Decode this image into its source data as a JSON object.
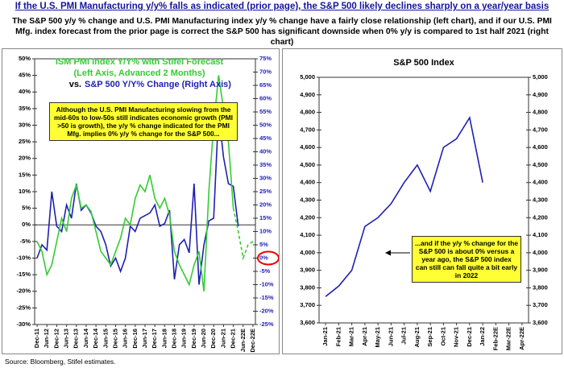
{
  "header": {
    "title": "If the U.S. PMI Manufacturing y/y% falls as indicated (prior page), the S&P 500 likely declines sharply on a year/year basis",
    "subtitle": "The S&P 500 y/y % change and U.S. PMI Manufacturing index y/y % change have a fairly close relationship (left chart), and if our U.S. PMI Mfg. index forecast from the prior page is correct the S&P 500 has significant downside when 0% y/y is compared to 1st half 2021 (right chart)"
  },
  "footnote": "Source: Bloomberg, Stifel estimates.",
  "chart_data": [
    {
      "type": "line",
      "title": "ISM PMI Index Y/Y% with Stifel Forecast",
      "subtitle": "(Left Axis, Advanced 2 Months)",
      "title2_prefix": "vs.",
      "title2": "S&P 500 Y/Y% Change (Right Axis)",
      "annotation": "Although the U.S. PMI Manufacturing slowing from the mid-60s to low-50s still indicates economic growth (PMI >50 is growth), the y/y % change indicated for the PMI Mfg. implies 0% y/y % change for the S&P 500...",
      "x": [
        "Dec-11",
        "Mar-12",
        "Jun-12",
        "Sep-12",
        "Dec-12",
        "Mar-13",
        "Jun-13",
        "Sep-13",
        "Dec-13",
        "Mar-14",
        "Jun-14",
        "Sep-14",
        "Dec-14",
        "Mar-15",
        "Jun-15",
        "Sep-15",
        "Dec-15",
        "Mar-16",
        "Jun-16",
        "Sep-16",
        "Dec-16",
        "Mar-17",
        "Jun-17",
        "Sep-17",
        "Dec-17",
        "Mar-18",
        "Jun-18",
        "Sep-18",
        "Dec-18",
        "Mar-19",
        "Jun-19",
        "Sep-19",
        "Dec-19",
        "Mar-20",
        "Jun-20",
        "Sep-20",
        "Dec-20",
        "Mar-21",
        "Jun-21",
        "Sep-21",
        "Dec-21",
        "Mar-22E",
        "Jun-22E",
        "Sep-22E",
        "Dec-22E"
      ],
      "xticks": [
        "Dec-11",
        "Jun-12",
        "Dec-12",
        "Jun-13",
        "Dec-13",
        "Jun-14",
        "Dec-14",
        "Jun-15",
        "Dec-15",
        "Jun-16",
        "Dec-16",
        "Jun-17",
        "Dec-17",
        "Jun-18",
        "Dec-18",
        "Jun-19",
        "Dec-19",
        "Jun-20",
        "Dec-20",
        "Jun-21",
        "Dec-21",
        "Jun-22E",
        "Dec-22E"
      ],
      "series": [
        {
          "color": "#33cc33",
          "axis": "y",
          "dashed_after": "Dec-21",
          "values": [
            -5,
            -8,
            -15,
            -12,
            -5,
            2,
            -2,
            8,
            12,
            5,
            6,
            4,
            -2,
            -8,
            -10,
            -12,
            -8,
            -4,
            2,
            0,
            8,
            12,
            10,
            15,
            8,
            5,
            8,
            3,
            -8,
            -12,
            -15,
            -18,
            -12,
            -8,
            -20,
            10,
            30,
            45,
            35,
            25,
            5,
            -2,
            -10,
            -6,
            -5
          ]
        },
        {
          "color": "#1f1fb4",
          "axis": "y2",
          "values": [
            0,
            5,
            3,
            25,
            12,
            10,
            20,
            15,
            28,
            18,
            20,
            17,
            12,
            10,
            5,
            -3,
            0,
            -5,
            0,
            12,
            10,
            15,
            16,
            17,
            20,
            12,
            13,
            18,
            -8,
            5,
            7,
            2,
            28,
            -10,
            5,
            14,
            15,
            55,
            38,
            28,
            27,
            12,
            null,
            null,
            null
          ]
        }
      ],
      "ylim": [
        -30,
        50
      ],
      "yticks": [
        {
          "value": -30,
          "label": "-30%"
        },
        {
          "value": -25,
          "label": "-25%"
        },
        {
          "value": -20,
          "label": "-20%"
        },
        {
          "value": -15,
          "label": "-15%"
        },
        {
          "value": -10,
          "label": "-10%"
        },
        {
          "value": -5,
          "label": "-5%"
        },
        {
          "value": 0,
          "label": "0%"
        },
        {
          "value": 5,
          "label": "5%"
        },
        {
          "value": 10,
          "label": "10%"
        },
        {
          "value": 15,
          "label": "15%"
        },
        {
          "value": 20,
          "label": "20%"
        },
        {
          "value": 25,
          "label": "25%"
        },
        {
          "value": 30,
          "label": "30%"
        },
        {
          "value": 35,
          "label": "35%"
        },
        {
          "value": 40,
          "label": "40%"
        },
        {
          "value": 45,
          "label": "45%"
        },
        {
          "value": 50,
          "label": "50%"
        }
      ],
      "y2lim": [
        -25,
        75
      ],
      "y2ticks": [
        {
          "value": -25,
          "label": "-25%"
        },
        {
          "value": -20,
          "label": "-20%"
        },
        {
          "value": -15,
          "label": "-15%"
        },
        {
          "value": -10,
          "label": "-10%"
        },
        {
          "value": -5,
          "label": "-5%"
        },
        {
          "value": 0,
          "label": "0%"
        },
        {
          "value": 5,
          "label": "5%"
        },
        {
          "value": 10,
          "label": "10%"
        },
        {
          "value": 15,
          "label": "15%"
        },
        {
          "value": 20,
          "label": "20%"
        },
        {
          "value": 25,
          "label": "25%"
        },
        {
          "value": 30,
          "label": "30%"
        },
        {
          "value": 35,
          "label": "35%"
        },
        {
          "value": 40,
          "label": "40%"
        },
        {
          "value": 45,
          "label": "45%"
        },
        {
          "value": 50,
          "label": "50%"
        },
        {
          "value": 55,
          "label": "55%"
        },
        {
          "value": 60,
          "label": "60%"
        },
        {
          "value": 65,
          "label": "65%"
        },
        {
          "value": 70,
          "label": "70%"
        },
        {
          "value": 75,
          "label": "75%"
        }
      ],
      "zero_line": true,
      "grid": false
    },
    {
      "type": "line",
      "title": "S&P 500 Index",
      "annotation": "...and if the y/y % change for the S&P 500 is about 0% versus a year ago, the S&P 500 index can still can fall quite a bit early in 2022",
      "x": [
        "Jan-21",
        "Feb-21",
        "Mar-21",
        "Apr-21",
        "May-21",
        "Jun-21",
        "Jul-21",
        "Aug-21",
        "Sep-21",
        "Oct-21",
        "Nov-21",
        "Dec-21",
        "Jan-22",
        "Feb-22E",
        "Mar-22E",
        "Apr-22E"
      ],
      "series": [
        {
          "color": "#1f1fb4",
          "axis": "y",
          "values": [
            3750,
            3810,
            3900,
            4150,
            4200,
            4280,
            4400,
            4500,
            4350,
            4600,
            4650,
            4770,
            4400,
            null,
            null,
            null
          ]
        }
      ],
      "ylim": [
        3600,
        5000
      ],
      "yticks": [
        {
          "value": 3600,
          "label": "3,600"
        },
        {
          "value": 3700,
          "label": "3,700"
        },
        {
          "value": 3800,
          "label": "3,800"
        },
        {
          "value": 3900,
          "label": "3,900"
        },
        {
          "value": 4000,
          "label": "4,000"
        },
        {
          "value": 4100,
          "label": "4,100"
        },
        {
          "value": 4200,
          "label": "4,200"
        },
        {
          "value": 4300,
          "label": "4,300"
        },
        {
          "value": 4400,
          "label": "4,400"
        },
        {
          "value": 4500,
          "label": "4,500"
        },
        {
          "value": 4600,
          "label": "4,600"
        },
        {
          "value": 4700,
          "label": "4,700"
        },
        {
          "value": 4800,
          "label": "4,800"
        },
        {
          "value": 4900,
          "label": "4,900"
        },
        {
          "value": 5000,
          "label": "5,000"
        }
      ],
      "mirror_y": true,
      "zero_line": false,
      "grid": false
    }
  ]
}
